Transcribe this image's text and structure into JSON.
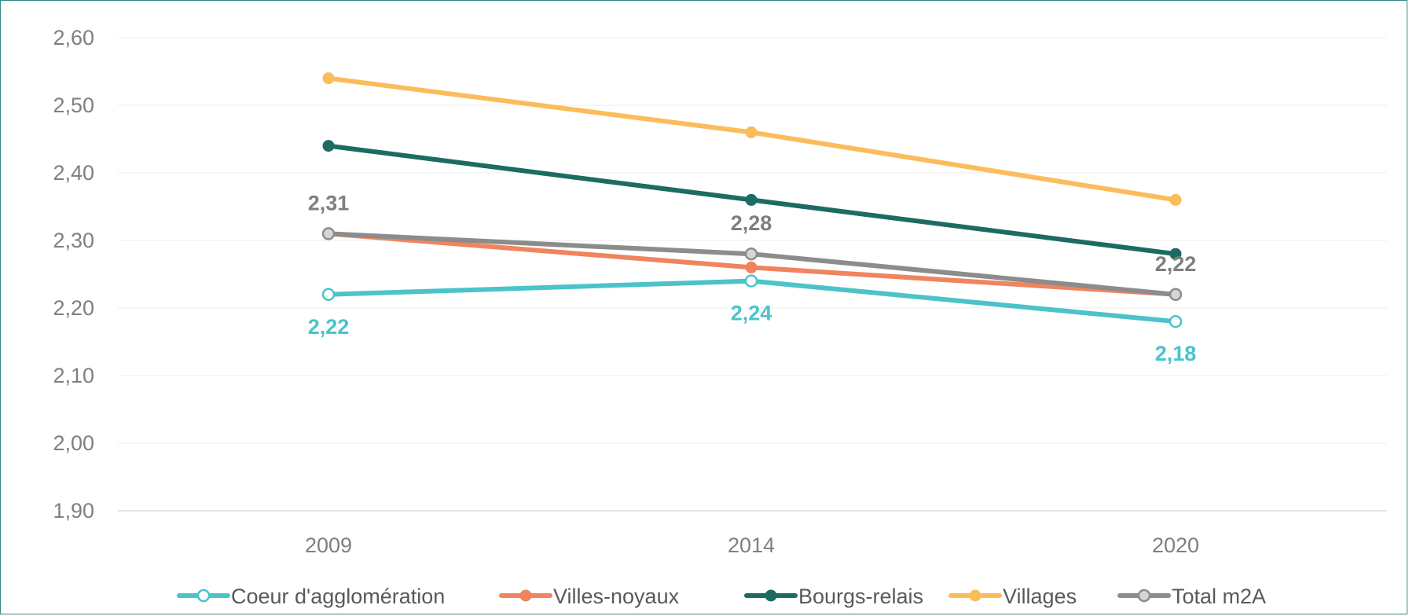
{
  "chart_data": {
    "type": "line",
    "categories": [
      "2009",
      "2014",
      "2020"
    ],
    "ylim": [
      1.9,
      2.6
    ],
    "yticks": [
      "1,90",
      "2,00",
      "2,10",
      "2,20",
      "2,30",
      "2,40",
      "2,50",
      "2,60"
    ],
    "grid": true,
    "legend_position": "bottom",
    "series": [
      {
        "name": "Coeur d'agglomération",
        "color": "#4bc3c9",
        "marker": "hollow",
        "values": [
          2.22,
          2.24,
          2.18
        ],
        "data_labels": [
          "2,22",
          "2,24",
          "2,18"
        ],
        "label_color": "#4bc3c9",
        "label_side": "below"
      },
      {
        "name": "Villes-noyaux",
        "color": "#f0845e",
        "marker": "filled",
        "values": [
          2.31,
          2.26,
          2.22
        ],
        "data_labels": [],
        "label_color": "#f0845e",
        "label_side": "above"
      },
      {
        "name": "Bourgs-relais",
        "color": "#1d6b63",
        "marker": "filled",
        "values": [
          2.44,
          2.36,
          2.28
        ],
        "data_labels": [],
        "label_color": "#1d6b63",
        "label_side": "above"
      },
      {
        "name": "Villages",
        "color": "#fbbc5c",
        "marker": "filled",
        "values": [
          2.54,
          2.46,
          2.36
        ],
        "data_labels": [],
        "label_color": "#fbbc5c",
        "label_side": "above"
      },
      {
        "name": "Total m2A",
        "color": "#8c8c8c",
        "marker": "grey-ring",
        "values": [
          2.31,
          2.28,
          2.22
        ],
        "data_labels": [
          "2,31",
          "2,28",
          "2,22"
        ],
        "label_color": "#7f7f7f",
        "label_side": "above"
      }
    ]
  }
}
